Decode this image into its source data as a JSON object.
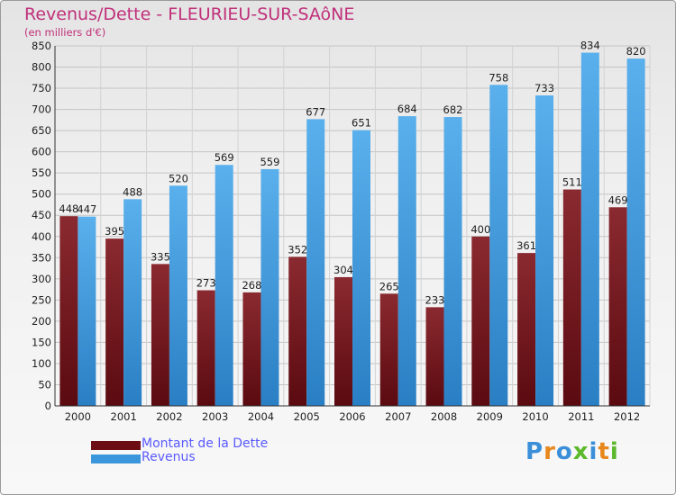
{
  "header": {
    "title": "Revenus/Dette - FLEURIEU-SUR-SAôNE",
    "subtitle": "(en milliers d'€)"
  },
  "chart_data": {
    "type": "bar",
    "title": "Revenus/Dette - FLEURIEU-SUR-SAôNE",
    "ylabel": "(en milliers d'€)",
    "xlabel": "",
    "categories": [
      "2000",
      "2001",
      "2002",
      "2003",
      "2004",
      "2005",
      "2006",
      "2007",
      "2008",
      "2009",
      "2010",
      "2011",
      "2012"
    ],
    "series": [
      {
        "name": "Montant de la Dette",
        "color": "#7a1a22",
        "values": [
          448,
          395,
          335,
          273,
          268,
          352,
          304,
          265,
          233,
          400,
          361,
          511,
          469
        ]
      },
      {
        "name": "Revenus",
        "color": "#3c96dc",
        "values": [
          447,
          488,
          520,
          569,
          559,
          677,
          651,
          684,
          682,
          758,
          733,
          834,
          820
        ]
      }
    ],
    "ylim": [
      0,
      850
    ],
    "yticks": [
      0,
      50,
      100,
      150,
      200,
      250,
      300,
      350,
      400,
      450,
      500,
      550,
      600,
      650,
      700,
      750,
      800,
      850
    ],
    "grid": true,
    "legend": "bottom-left"
  },
  "legend": {
    "items": [
      {
        "label": "Montant de la Dette",
        "color": "#6b0d12"
      },
      {
        "label": "Revenus",
        "color": "#3c96dc"
      }
    ]
  },
  "branding": {
    "logo_text": "Proxiti",
    "letters": [
      "P",
      "r",
      "o",
      "x",
      "i",
      "t",
      "i"
    ],
    "letter_colors": [
      "#3a8fd8",
      "#e8881c",
      "#3a8fd8",
      "#5cb82c",
      "#3a8fd8",
      "#e8881c",
      "#5cb82c"
    ]
  }
}
